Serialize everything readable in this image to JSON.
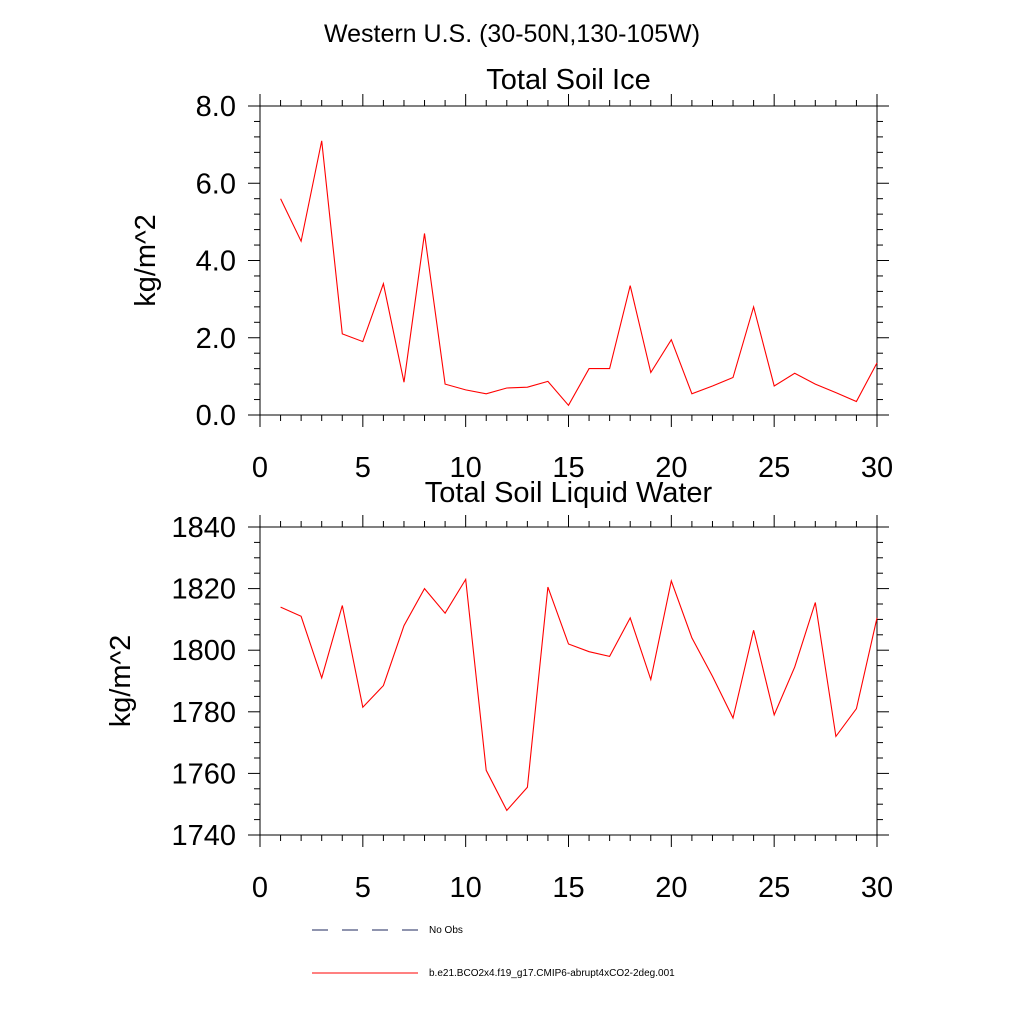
{
  "figure": {
    "main_title": "Western U.S. (30-50N,130-105W)"
  },
  "chart_data": [
    {
      "type": "line",
      "title": "Total Soil Ice",
      "ylabel": "kg/m^2",
      "xlabel": "",
      "xlim": [
        0,
        30
      ],
      "ylim": [
        0,
        8
      ],
      "xticks": [
        0,
        5,
        10,
        15,
        20,
        25,
        30
      ],
      "xtick_labels": [
        "0",
        "5",
        "10",
        "15",
        "20",
        "25",
        "30"
      ],
      "yticks": [
        0,
        2,
        4,
        6,
        8
      ],
      "ytick_labels": [
        "0.0",
        "2.0",
        "4.0",
        "6.0",
        "8.0"
      ],
      "grid": false,
      "series": [
        {
          "name": "b.e21.BCO2x4.f19_g17.CMIP6-abrupt4xCO2-2deg.001",
          "color": "#ff0000",
          "x": [
            1,
            2,
            3,
            4,
            5,
            6,
            7,
            8,
            9,
            10,
            11,
            12,
            13,
            14,
            15,
            16,
            17,
            18,
            19,
            20,
            21,
            22,
            23,
            24,
            25,
            26,
            27,
            28,
            29,
            30
          ],
          "values": [
            5.6,
            4.5,
            7.1,
            2.1,
            1.9,
            3.4,
            0.85,
            4.7,
            0.8,
            0.65,
            0.55,
            0.7,
            0.72,
            0.87,
            0.25,
            1.2,
            1.2,
            3.35,
            1.1,
            1.95,
            0.55,
            0.75,
            0.97,
            2.8,
            0.75,
            1.08,
            0.8,
            0.58,
            0.35,
            1.35
          ]
        }
      ]
    },
    {
      "type": "line",
      "title": "Total Soil Liquid Water",
      "ylabel": "kg/m^2",
      "xlabel": "",
      "xlim": [
        0,
        30
      ],
      "ylim": [
        1740,
        1840
      ],
      "xticks": [
        0,
        5,
        10,
        15,
        20,
        25,
        30
      ],
      "xtick_labels": [
        "0",
        "5",
        "10",
        "15",
        "20",
        "25",
        "30"
      ],
      "yticks": [
        1740,
        1760,
        1780,
        1800,
        1820,
        1840
      ],
      "ytick_labels": [
        "1740",
        "1760",
        "1780",
        "1800",
        "1820",
        "1840"
      ],
      "grid": false,
      "series": [
        {
          "name": "b.e21.BCO2x4.f19_g17.CMIP6-abrupt4xCO2-2deg.001",
          "color": "#ff0000",
          "x": [
            1,
            2,
            3,
            4,
            5,
            6,
            7,
            8,
            9,
            10,
            11,
            12,
            13,
            14,
            15,
            16,
            17,
            18,
            19,
            20,
            21,
            22,
            23,
            24,
            25,
            26,
            27,
            28,
            29,
            30
          ],
          "values": [
            1814,
            1811,
            1791,
            1814.5,
            1781.5,
            1788.5,
            1808,
            1820,
            1812,
            1823,
            1761,
            1748,
            1755.5,
            1820.5,
            1802,
            1799.5,
            1798,
            1810.5,
            1790.5,
            1822.5,
            1804,
            1791.5,
            1778,
            1806.5,
            1779,
            1794.5,
            1815.5,
            1772,
            1781,
            1810.5
          ]
        }
      ]
    }
  ],
  "legend": {
    "placement": "bottom-left",
    "entries": [
      {
        "label": "No Obs",
        "style": "dashed",
        "color": "#1f2a5c"
      },
      {
        "label": "b.e21.BCO2x4.f19_g17.CMIP6-abrupt4xCO2-2deg.001",
        "style": "solid",
        "color": "#ff0000"
      }
    ]
  }
}
